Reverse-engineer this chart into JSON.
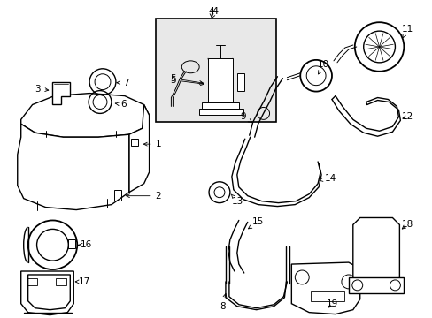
{
  "background_color": "#ffffff",
  "line_color": "#000000",
  "box_fill": "#e8e8e8",
  "figsize": [
    4.89,
    3.6
  ],
  "dpi": 100
}
